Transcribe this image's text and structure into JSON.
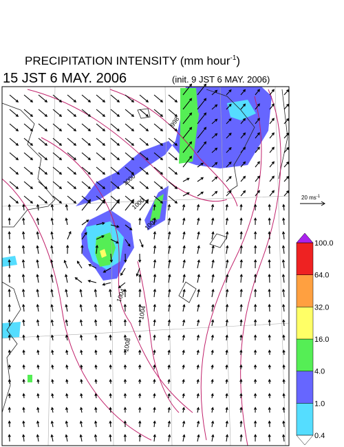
{
  "header": {
    "title": "PRECIPITATION INTENSITY (mm hour",
    "title_superscript": "-1",
    "title_end": ")",
    "valid_time": "15 JST 6 MAY. 2006",
    "init_time": "(init. 9 JST 6 MAY. 2006)"
  },
  "vector_scale": {
    "label": "20 ms",
    "superscript": "-1"
  },
  "contour_labels": [
    "998",
    "1000",
    "1000",
    "1002",
    "1004",
    "1004",
    "1008"
  ],
  "colorbar": {
    "labels": [
      "0.4",
      "1.0",
      "4.0",
      "16.0",
      "32.0",
      "64.0",
      "100.0"
    ],
    "colors": [
      "#55ddff",
      "#6666ff",
      "#55ee55",
      "#ffff66",
      "#ffa040",
      "#ee2222"
    ],
    "over_color": "#aa22ee",
    "under_color": "#ffffff"
  }
}
